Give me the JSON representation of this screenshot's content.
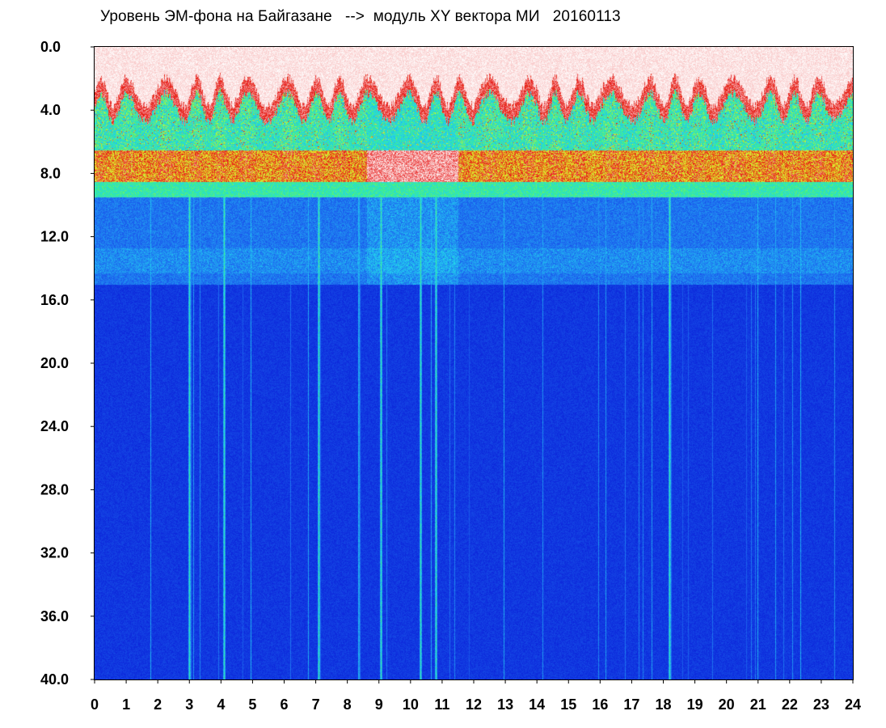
{
  "chart_data": {
    "type": "heatmap",
    "title": "Уровень ЭМ-фона на Байгазане   -->  модуль XY вектора МИ   20160113",
    "xlabel": "",
    "ylabel": "",
    "xlim": [
      0,
      24
    ],
    "ylim": [
      0,
      40
    ],
    "y_inverted": true,
    "x_ticks": [
      "0",
      "1",
      "2",
      "3",
      "4",
      "5",
      "6",
      "7",
      "8",
      "9",
      "10",
      "11",
      "12",
      "13",
      "14",
      "15",
      "16",
      "17",
      "18",
      "19",
      "20",
      "21",
      "22",
      "23",
      "24"
    ],
    "y_ticks": [
      "0.0",
      "4.0",
      "8.0",
      "12.0",
      "16.0",
      "20.0",
      "24.0",
      "28.0",
      "32.0",
      "36.0",
      "40.0"
    ],
    "grid": false,
    "colormap": [
      "#0a1ed8",
      "#1e6cf0",
      "#22d2f0",
      "#3cf08c",
      "#e6f028",
      "#e61414",
      "#ffffff"
    ],
    "bands": [
      {
        "y_from": 0.0,
        "y_to": 1.5,
        "level": "white (saturated)"
      },
      {
        "y_from": 1.5,
        "y_to": 3.0,
        "level": "red edge"
      },
      {
        "y_from": 3.0,
        "y_to": 6.5,
        "level": "green / cyan / blue"
      },
      {
        "y_from": 6.5,
        "y_to": 8.5,
        "level": "red / yellow band"
      },
      {
        "y_from": 8.5,
        "y_to": 9.5,
        "level": "cyan transition"
      },
      {
        "y_from": 9.5,
        "y_to": 15.0,
        "level": "medium blue"
      },
      {
        "y_from": 15.0,
        "y_to": 40.0,
        "level": "deep blue"
      }
    ],
    "strong_vertical_lines_x": [
      3.0,
      4.1,
      7.1,
      9.05,
      10.3,
      10.8,
      18.2
    ],
    "disturbed_interval_x": [
      8.6,
      11.5
    ]
  }
}
